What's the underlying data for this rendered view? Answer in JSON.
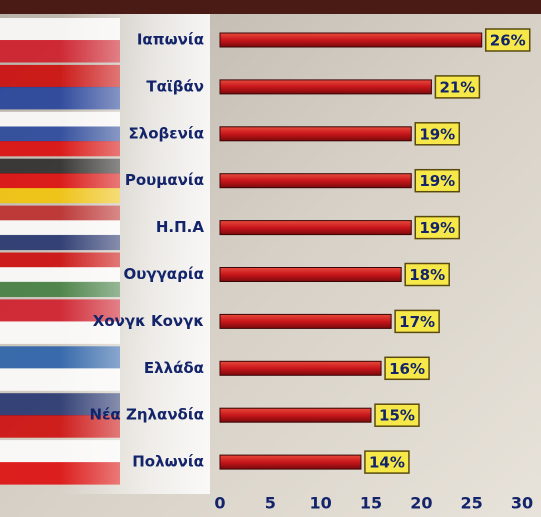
{
  "chart_data": {
    "type": "bar",
    "orientation": "horizontal",
    "categories": [
      "Ιαπωνία",
      "Ταϊβάν",
      "Σλοβενία",
      "Ρουμανία",
      "Η.Π.Α",
      "Ουγγαρία",
      "Χονγκ Κονγκ",
      "Ελλάδα",
      "Νέα Ζηλανδία",
      "Πολωνία"
    ],
    "values": [
      26,
      21,
      19,
      19,
      19,
      18,
      17,
      16,
      15,
      14
    ],
    "value_labels": [
      "26%",
      "21%",
      "19%",
      "19%",
      "19%",
      "18%",
      "17%",
      "16%",
      "15%",
      "14%"
    ],
    "color": "#c8161b",
    "xlim": [
      0,
      30
    ],
    "xticks": [
      0,
      5,
      10,
      15,
      20,
      25,
      30
    ]
  }
}
